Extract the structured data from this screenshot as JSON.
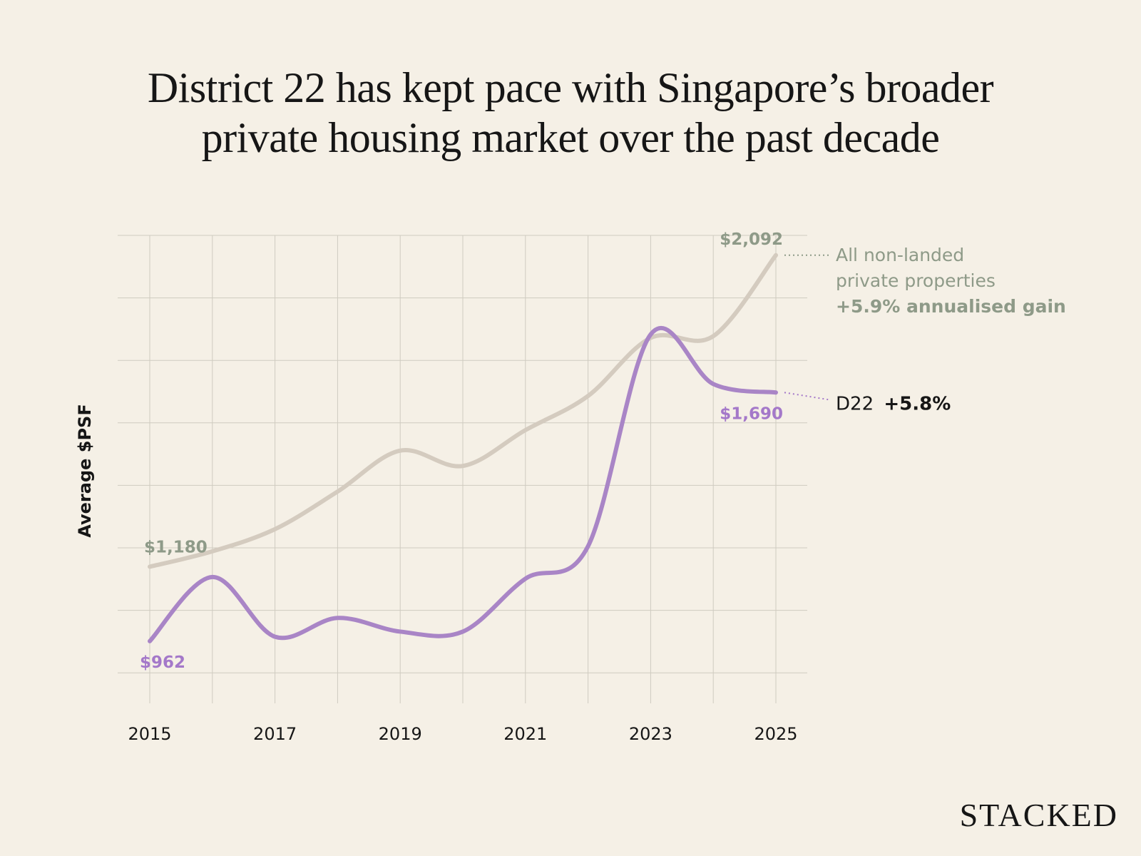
{
  "colors": {
    "background": "#f5f0e6",
    "grid": "#cfcbc0",
    "market_line": "#d4cbbf",
    "market_label": "#8e9a88",
    "d22_line": "#a985c6",
    "d22_label": "#a478c9",
    "text_dark": "#161616"
  },
  "brand": "STACKED",
  "chart_data": {
    "type": "line",
    "title": "District 22 has kept pace with Singapore’s broader private housing market over the past decade",
    "title_lines": [
      "District 22 has kept pace with Singapore’s broader",
      "private housing market over the past decade"
    ],
    "xlabel": "",
    "ylabel": "Average $PSF",
    "x": [
      2015,
      2016,
      2017,
      2018,
      2019,
      2020,
      2021,
      2022,
      2023,
      2024,
      2025
    ],
    "x_tick_labels": [
      "2015",
      "2017",
      "2019",
      "2021",
      "2023",
      "2025"
    ],
    "xlim": [
      2014.5,
      2025.5
    ],
    "ylim": [
      780,
      2150
    ],
    "grid": true,
    "series": [
      {
        "key": "market",
        "name": "All non-landed private properties",
        "values": [
          1180,
          1225,
          1290,
          1400,
          1520,
          1475,
          1580,
          1680,
          1850,
          1855,
          2092
        ],
        "label_lines": [
          "All non-landed",
          "private properties"
        ],
        "gain_text": "+5.9% annualised gain",
        "start_label": "$1,180",
        "end_label": "$2,092"
      },
      {
        "key": "d22",
        "name": "D22",
        "values": [
          962,
          1150,
          975,
          1030,
          990,
          990,
          1145,
          1240,
          1860,
          1715,
          1690
        ],
        "gain_text": "+5.8%",
        "start_label": "$962",
        "end_label": "$1,690"
      }
    ]
  }
}
